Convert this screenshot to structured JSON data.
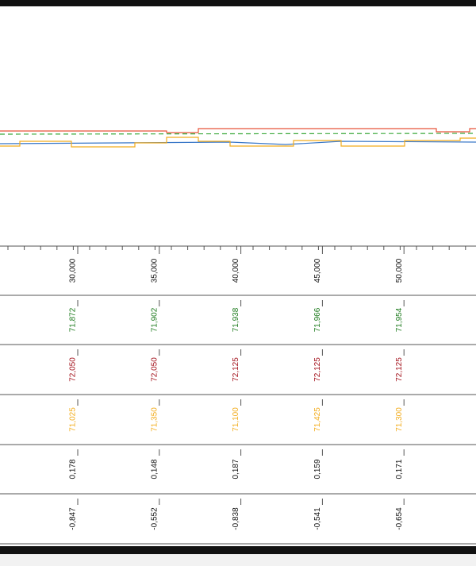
{
  "table": {
    "columns": [
      "30,000",
      "35,000",
      "40,000",
      "45,000",
      "50,000"
    ],
    "rows": [
      {
        "color": "#1e7b1e",
        "values": [
          "71,872",
          "71,902",
          "71,938",
          "71,966",
          "71,954"
        ]
      },
      {
        "color": "#a3111b",
        "values": [
          "72,050",
          "72,050",
          "72,125",
          "72,125",
          "72,125"
        ]
      },
      {
        "color": "#f2ac1c",
        "values": [
          "71,025",
          "71,350",
          "71,100",
          "71,425",
          "71,300"
        ]
      },
      {
        "color": "#111111",
        "values": [
          "0,178",
          "0,148",
          "0,187",
          "0,159",
          "0,171"
        ]
      },
      {
        "color": "#111111",
        "values": [
          "-0,847",
          "-0,552",
          "-0,838",
          "-0,541",
          "-0,654"
        ]
      }
    ]
  }
}
